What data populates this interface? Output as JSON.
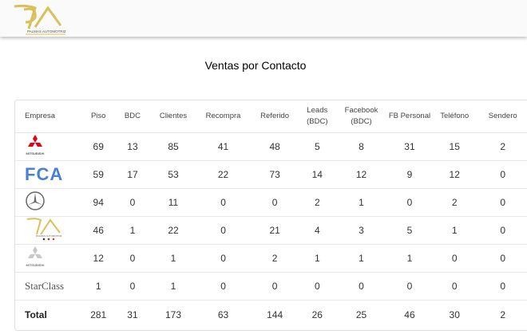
{
  "header": {
    "logo_text": "PALMAS AUTOMOTRIZ",
    "logo_color": "#d9c15a"
  },
  "page": {
    "title": "Ventas por Contacto"
  },
  "table": {
    "columns": [
      "Empresa",
      "Piso",
      "BDC",
      "Clientes",
      "Recompra",
      "Referido",
      "Leads (BDC)",
      "Facebook (BDC)",
      "FB Personal",
      "Teléfono",
      "Sendero"
    ],
    "rows": [
      {
        "empresa": "Mitsubishi",
        "logo": "mitsubishi-red-logo",
        "values": [
          "69",
          "13",
          "85",
          "41",
          "48",
          "5",
          "8",
          "31",
          "15",
          "2"
        ]
      },
      {
        "empresa": "FCA",
        "logo": "fca-logo",
        "values": [
          "59",
          "17",
          "53",
          "22",
          "73",
          "14",
          "12",
          "9",
          "12",
          "0"
        ]
      },
      {
        "empresa": "Mercedes-Benz",
        "logo": "mercedes-logo",
        "values": [
          "94",
          "0",
          "11",
          "0",
          "0",
          "2",
          "1",
          "0",
          "2",
          "0"
        ]
      },
      {
        "empresa": "Palmas Automotriz",
        "logo": "palmas-logo",
        "values": [
          "46",
          "1",
          "22",
          "0",
          "21",
          "4",
          "3",
          "5",
          "1",
          "0"
        ]
      },
      {
        "empresa": "Mitsubishi",
        "logo": "mitsubishi-gray-logo",
        "values": [
          "12",
          "0",
          "1",
          "0",
          "2",
          "1",
          "1",
          "1",
          "0",
          "0"
        ]
      },
      {
        "empresa": "StarClass",
        "logo": "starclass-logo",
        "values": [
          "1",
          "0",
          "1",
          "0",
          "0",
          "0",
          "0",
          "0",
          "0",
          "0"
        ]
      }
    ],
    "total": {
      "label": "Total",
      "values": [
        "281",
        "31",
        "173",
        "63",
        "144",
        "26",
        "25",
        "46",
        "30",
        "2"
      ]
    }
  }
}
